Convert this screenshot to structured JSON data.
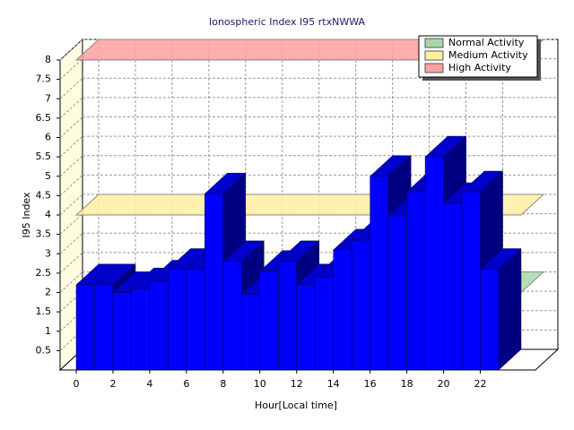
{
  "chart_data": {
    "type": "bar3d",
    "title": "Ionospheric Index I95 rtxNWWA",
    "x_label": "Hour[Local time]",
    "y_label": "I95 Index",
    "x": [
      0,
      1,
      2,
      3,
      4,
      5,
      6,
      7,
      8,
      9,
      10,
      11,
      12,
      13,
      14,
      15,
      16,
      17,
      18,
      19,
      20,
      21,
      22
    ],
    "values": [
      2.2,
      2.2,
      2.0,
      2.1,
      2.3,
      2.6,
      2.6,
      4.55,
      2.8,
      1.95,
      2.55,
      2.8,
      2.2,
      2.4,
      3.1,
      3.35,
      5.0,
      4.0,
      4.6,
      5.5,
      4.3,
      4.6,
      2.6
    ],
    "color": "#0000ff",
    "xlim": [
      0,
      23
    ],
    "xticks": [
      0,
      2,
      4,
      6,
      8,
      10,
      12,
      14,
      16,
      18,
      20,
      22
    ],
    "ylim": [
      0,
      8
    ],
    "yticks": [
      0.5,
      1,
      1.5,
      2,
      2.5,
      3,
      3.5,
      4,
      4.5,
      5,
      5.5,
      6,
      6.5,
      7,
      7.5,
      8
    ],
    "grid": true,
    "thresholds": [
      {
        "name": "Normal Activity",
        "color": "#a8d8a8",
        "value": 2
      },
      {
        "name": "Medium Activity",
        "color": "#fff0a0",
        "value": 4
      },
      {
        "name": "High Activity",
        "color": "#ffa0a0",
        "value": 8
      }
    ]
  }
}
